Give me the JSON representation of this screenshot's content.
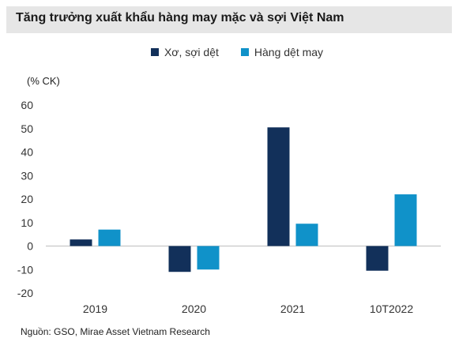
{
  "title": "Tăng trưởng xuất khẩu hàng may mặc và sợi Việt Nam",
  "unit_label": "(% CK)",
  "source": "Nguồn: GSO, Mirae Asset Vietnam Research",
  "colors": {
    "series1": "#12305a",
    "series2": "#1092c9",
    "zero_line": "#bfbfbf",
    "title_band": "#e6e6e6"
  },
  "chart_data": {
    "type": "bar",
    "title": "Tăng trưởng xuất khẩu hàng may mặc và sợi Việt Nam",
    "ylabel": "(% CK)",
    "xlabel": "",
    "categories": [
      "2019",
      "2020",
      "2021",
      "10T2022"
    ],
    "series": [
      {
        "name": "Xơ, sợi dệt",
        "values": [
          2.8,
          -11,
          50.5,
          -10.5
        ]
      },
      {
        "name": "Hàng dệt may",
        "values": [
          7,
          -10,
          9.5,
          22
        ]
      }
    ],
    "ylim": [
      -20,
      60
    ],
    "yticks": [
      60,
      50,
      40,
      30,
      20,
      10,
      0,
      -10,
      -20
    ],
    "grid": false,
    "legend": "top-center"
  }
}
